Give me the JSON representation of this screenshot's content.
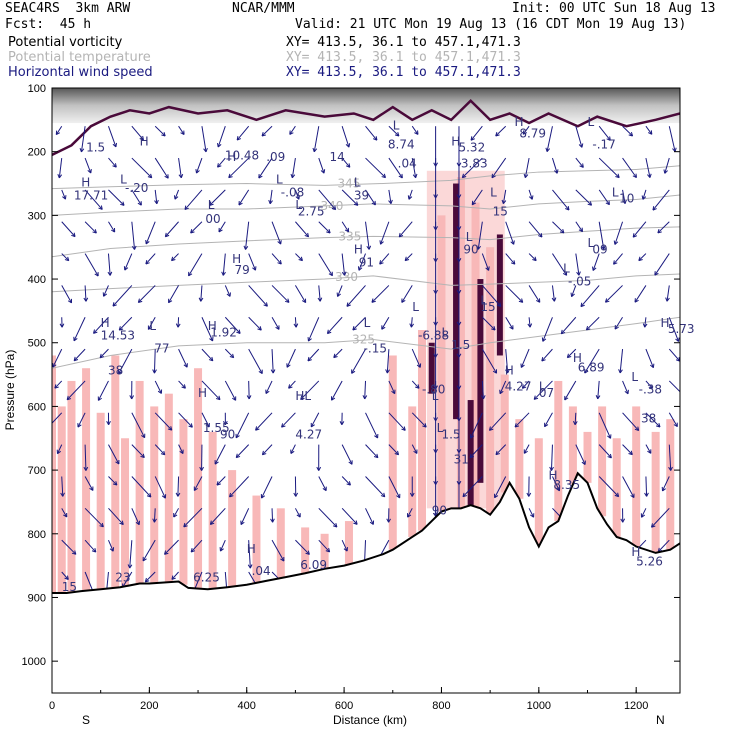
{
  "header": {
    "model": "SEAC4RS  3km ARW",
    "org": "NCAR/MMM",
    "init": "Init: 00 UTC Sun 18 Aug 13",
    "fcst": "Fcst:  45 h",
    "valid": "Valid: 21 UTC Mon 19 Aug 13 (16 CDT Mon 19 Aug 13)",
    "fields": [
      {
        "name": "Potential vorticity",
        "xy": "XY= 413.5, 36.1 to 457.1,471.3",
        "color": "#000000"
      },
      {
        "name": "Potential temperature",
        "xy": "XY= 413.5, 36.1 to 457.1,471.3",
        "color": "#b4b4b4"
      },
      {
        "name": "Horizontal wind speed",
        "xy": "XY= 413.5, 36.1 to 457.1,471.3",
        "color": "#1a1a80"
      }
    ]
  },
  "chart_data": {
    "type": "cross-section",
    "xlabel": "Distance (km)",
    "ylabel": "Pressure (hPa)",
    "xlim": [
      0,
      1290
    ],
    "ylim": [
      100,
      1050
    ],
    "x_ticks": [
      0,
      200,
      400,
      600,
      800,
      1000,
      1200
    ],
    "y_ticks": [
      100,
      200,
      300,
      400,
      500,
      600,
      700,
      800,
      900,
      1000
    ],
    "end_labels": {
      "left": "S",
      "right": "N"
    },
    "colors": {
      "terrain": "#000000",
      "theta": "#b4b4b4",
      "wind": "#1a1a80",
      "pv_pos": "#f8b8b8",
      "pv_high": "#4a0a3a",
      "hl_text": "#33337a"
    },
    "terrain": [
      [
        0,
        893
      ],
      [
        30,
        893
      ],
      [
        60,
        890
      ],
      [
        100,
        887
      ],
      [
        140,
        884
      ],
      [
        180,
        878
      ],
      [
        200,
        878
      ],
      [
        260,
        875
      ],
      [
        280,
        885
      ],
      [
        320,
        887
      ],
      [
        360,
        884
      ],
      [
        400,
        880
      ],
      [
        440,
        874
      ],
      [
        480,
        868
      ],
      [
        520,
        862
      ],
      [
        560,
        855
      ],
      [
        600,
        850
      ],
      [
        640,
        842
      ],
      [
        680,
        832
      ],
      [
        700,
        825
      ],
      [
        740,
        805
      ],
      [
        760,
        795
      ],
      [
        780,
        780
      ],
      [
        800,
        765
      ],
      [
        820,
        760
      ],
      [
        840,
        760
      ],
      [
        860,
        755
      ],
      [
        880,
        760
      ],
      [
        900,
        770
      ],
      [
        920,
        750
      ],
      [
        940,
        720
      ],
      [
        960,
        745
      ],
      [
        980,
        790
      ],
      [
        1000,
        820
      ],
      [
        1020,
        790
      ],
      [
        1040,
        780
      ],
      [
        1060,
        740
      ],
      [
        1080,
        705
      ],
      [
        1100,
        720
      ],
      [
        1120,
        760
      ],
      [
        1140,
        785
      ],
      [
        1160,
        805
      ],
      [
        1180,
        810
      ],
      [
        1200,
        820
      ],
      [
        1240,
        830
      ],
      [
        1270,
        825
      ],
      [
        1290,
        815
      ]
    ],
    "theta_contours": [
      {
        "label": "345",
        "pts": [
          [
            0,
            258
          ],
          [
            120,
            255
          ],
          [
            260,
            252
          ],
          [
            400,
            250
          ],
          [
            560,
            253
          ],
          [
            680,
            250
          ],
          [
            820,
            245
          ],
          [
            900,
            238
          ],
          [
            1000,
            232
          ],
          [
            1100,
            230
          ],
          [
            1200,
            228
          ],
          [
            1290,
            222
          ]
        ],
        "label_at": [
          610,
          250
        ]
      },
      {
        "label": "340",
        "pts": [
          [
            0,
            300
          ],
          [
            120,
            295
          ],
          [
            260,
            290
          ],
          [
            400,
            290
          ],
          [
            560,
            285
          ],
          [
            660,
            282
          ],
          [
            820,
            285
          ],
          [
            900,
            290
          ],
          [
            1000,
            282
          ],
          [
            1100,
            278
          ],
          [
            1200,
            275
          ],
          [
            1290,
            268
          ]
        ],
        "label_at": [
          575,
          285
        ]
      },
      {
        "label": "335",
        "pts": [
          [
            0,
            365
          ],
          [
            120,
            352
          ],
          [
            260,
            345
          ],
          [
            400,
            340
          ],
          [
            560,
            335
          ],
          [
            660,
            333
          ],
          [
            820,
            335
          ],
          [
            900,
            338
          ],
          [
            1000,
            330
          ],
          [
            1100,
            325
          ],
          [
            1200,
            320
          ],
          [
            1290,
            318
          ]
        ],
        "label_at": [
          612,
          333
        ]
      },
      {
        "label": "330",
        "pts": [
          [
            0,
            420
          ],
          [
            120,
            415
          ],
          [
            260,
            410
          ],
          [
            400,
            405
          ],
          [
            560,
            400
          ],
          [
            660,
            395
          ],
          [
            820,
            410
          ],
          [
            900,
            408
          ],
          [
            1000,
            405
          ],
          [
            1100,
            402
          ],
          [
            1200,
            395
          ],
          [
            1290,
            392
          ]
        ],
        "label_at": [
          605,
          397
        ]
      },
      {
        "label": "325",
        "pts": [
          [
            0,
            540
          ],
          [
            120,
            520
          ],
          [
            260,
            505
          ],
          [
            400,
            500
          ],
          [
            560,
            500
          ],
          [
            660,
            495
          ],
          [
            820,
            510
          ],
          [
            900,
            500
          ],
          [
            1000,
            490
          ],
          [
            1100,
            480
          ],
          [
            1200,
            470
          ],
          [
            1290,
            460
          ]
        ],
        "label_at": [
          640,
          495
        ]
      }
    ],
    "annotations": [
      {
        "t": "H",
        "x": 60,
        "y": 255
      },
      {
        "t": "17.71",
        "x": 45,
        "y": 275
      },
      {
        "t": "L",
        "x": 140,
        "y": 250
      },
      {
        "t": "-.20",
        "x": 150,
        "y": 263
      },
      {
        "t": "L",
        "x": 320,
        "y": 290
      },
      {
        "t": "00",
        "x": 315,
        "y": 312
      },
      {
        "t": "H",
        "x": 370,
        "y": 375
      },
      {
        "t": "79",
        "x": 375,
        "y": 392
      },
      {
        "t": "L",
        "x": 460,
        "y": 250
      },
      {
        "t": "-.08",
        "x": 470,
        "y": 270
      },
      {
        "t": "L",
        "x": 500,
        "y": 290
      },
      {
        "t": "2.75",
        "x": 505,
        "y": 300
      },
      {
        "t": "H",
        "x": 360,
        "y": 215
      },
      {
        "t": "10.48",
        "x": 355,
        "y": 212
      },
      {
        "t": "L",
        "x": 620,
        "y": 255
      },
      {
        "t": "39",
        "x": 620,
        "y": 275
      },
      {
        "t": "H",
        "x": 620,
        "y": 360
      },
      {
        "t": "91",
        "x": 630,
        "y": 380
      },
      {
        "t": "L",
        "x": 700,
        "y": 165
      },
      {
        "t": "8.74",
        "x": 690,
        "y": 195
      },
      {
        "t": "L",
        "x": 740,
        "y": 450
      },
      {
        "t": "-6.88",
        "x": 752,
        "y": 495
      },
      {
        "t": "L",
        "x": 800,
        "y": 490
      },
      {
        "t": "1.5",
        "x": 820,
        "y": 510
      },
      {
        "t": "H",
        "x": 820,
        "y": 190
      },
      {
        "t": "5.32",
        "x": 835,
        "y": 200
      },
      {
        "t": "3.83",
        "x": 840,
        "y": 225
      },
      {
        "t": "L",
        "x": 850,
        "y": 340
      },
      {
        "t": "90",
        "x": 845,
        "y": 360
      },
      {
        "t": "L",
        "x": 880,
        "y": 440
      },
      {
        "t": "15",
        "x": 880,
        "y": 450
      },
      {
        "t": "L",
        "x": 900,
        "y": 270
      },
      {
        "t": "15",
        "x": 905,
        "y": 300
      },
      {
        "t": "H",
        "x": 930,
        "y": 550
      },
      {
        "t": "4.27",
        "x": 930,
        "y": 575
      },
      {
        "t": "L",
        "x": 1000,
        "y": 575
      },
      {
        "t": "07",
        "x": 1000,
        "y": 585
      },
      {
        "t": "L",
        "x": 1050,
        "y": 390
      },
      {
        "t": "-.05",
        "x": 1060,
        "y": 410
      },
      {
        "t": "L",
        "x": 1100,
        "y": 350
      },
      {
        "t": "09",
        "x": 1110,
        "y": 360
      },
      {
        "t": "L",
        "x": 1150,
        "y": 270
      },
      {
        "t": "10",
        "x": 1165,
        "y": 280
      },
      {
        "t": "L",
        "x": 1100,
        "y": 160
      },
      {
        "t": "-.17",
        "x": 1110,
        "y": 195
      },
      {
        "t": "H",
        "x": 950,
        "y": 160
      },
      {
        "t": "8.79",
        "x": 960,
        "y": 178
      },
      {
        "t": "H",
        "x": 1250,
        "y": 475
      },
      {
        "t": "5.73",
        "x": 1265,
        "y": 485
      },
      {
        "t": "H",
        "x": 1070,
        "y": 530
      },
      {
        "t": "6.89",
        "x": 1080,
        "y": 545
      },
      {
        "t": "L",
        "x": 1190,
        "y": 560
      },
      {
        "t": "-.38",
        "x": 1205,
        "y": 580
      },
      {
        "t": "38",
        "x": 1210,
        "y": 625
      },
      {
        "t": "H",
        "x": 1020,
        "y": 715
      },
      {
        "t": "8.35",
        "x": 1030,
        "y": 730
      },
      {
        "t": "H",
        "x": 1190,
        "y": 835
      },
      {
        "t": "5.26",
        "x": 1200,
        "y": 850
      },
      {
        "t": "H",
        "x": 100,
        "y": 475
      },
      {
        "t": "14.53",
        "x": 100,
        "y": 495
      },
      {
        "t": "38",
        "x": 115,
        "y": 550
      },
      {
        "t": "L",
        "x": 200,
        "y": 480
      },
      {
        "t": "77",
        "x": 210,
        "y": 515
      },
      {
        "t": "H",
        "x": 320,
        "y": 480
      },
      {
        "t": "1.92",
        "x": 325,
        "y": 490
      },
      {
        "t": "H",
        "x": 300,
        "y": 585
      },
      {
        "t": "1.55",
        "x": 310,
        "y": 640
      },
      {
        "t": "90",
        "x": 345,
        "y": 650
      },
      {
        "t": "HL",
        "x": 500,
        "y": 590
      },
      {
        "t": "4.27",
        "x": 500,
        "y": 650
      },
      {
        "t": "L",
        "x": 640,
        "y": 475
      },
      {
        "t": "-.15",
        "x": 640,
        "y": 515
      },
      {
        "t": "H",
        "x": 400,
        "y": 830
      },
      {
        "t": ".04",
        "x": 410,
        "y": 865
      },
      {
        "t": "6.25",
        "x": 290,
        "y": 875
      },
      {
        "t": "23",
        "x": 130,
        "y": 875
      },
      {
        "t": "15",
        "x": 20,
        "y": 890
      },
      {
        "t": "6.09",
        "x": 510,
        "y": 855
      },
      {
        "t": "L",
        "x": 790,
        "y": 640
      },
      {
        "t": "1.5",
        "x": 800,
        "y": 650
      },
      {
        "t": "31",
        "x": 825,
        "y": 690
      },
      {
        "t": "90",
        "x": 780,
        "y": 770
      },
      {
        "t": "L",
        "x": 780,
        "y": 590
      },
      {
        "t": "-.80",
        "x": 760,
        "y": 580
      },
      {
        "t": "H",
        "x": 180,
        "y": 190
      },
      {
        "t": "1.5",
        "x": 70,
        "y": 200
      },
      {
        "t": ".04",
        "x": 710,
        "y": 225
      },
      {
        "t": ".09",
        "x": 440,
        "y": 215
      },
      {
        "t": "14",
        "x": 570,
        "y": 215
      }
    ]
  }
}
